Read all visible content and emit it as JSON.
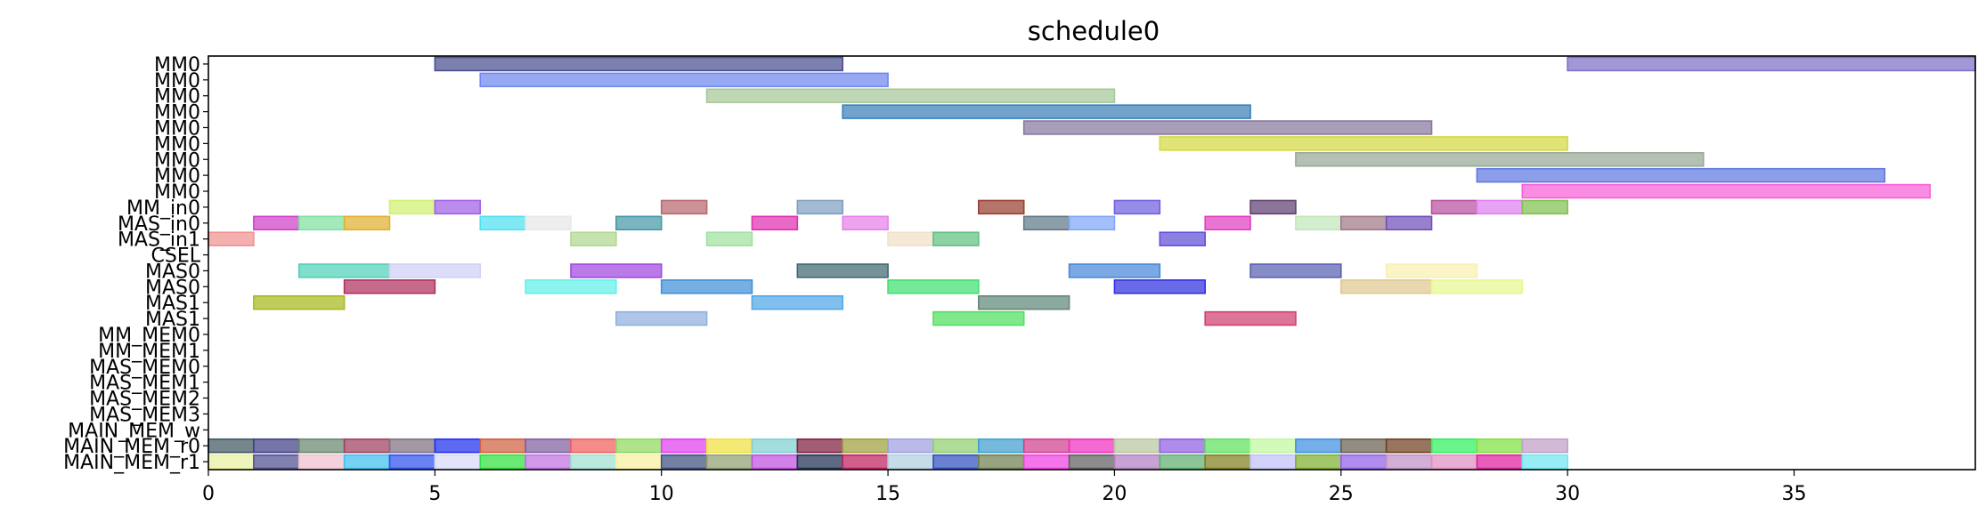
{
  "chart_data": {
    "type": "gantt",
    "title": "schedule0",
    "xlim": [
      0,
      39
    ],
    "x_ticks": [
      0,
      5,
      10,
      15,
      20,
      25,
      30,
      35
    ],
    "lanes": [
      "MM0",
      "MM0",
      "MM0",
      "MM0",
      "MM0",
      "MM0",
      "MM0",
      "MM0",
      "MM0",
      "MM_in0",
      "MAS_in0",
      "MAS_in1",
      "CSEL",
      "MAS0",
      "MAS0",
      "MAS1",
      "MAS1",
      "MM_MEM0",
      "MM_MEM1",
      "MAS_MEM0",
      "MAS_MEM1",
      "MAS_MEM2",
      "MAS_MEM3",
      "MAIN_MEM_w",
      "MAIN_MEM_r0",
      "MAIN_MEM_r1"
    ],
    "tasks": [
      {
        "lane": 0,
        "start": 5,
        "end": 14,
        "color": "#4a4f8f"
      },
      {
        "lane": 0,
        "start": 30,
        "end": 39,
        "color": "#7f70c8"
      },
      {
        "lane": 1,
        "start": 6,
        "end": 15,
        "color": "#7088f0"
      },
      {
        "lane": 2,
        "start": 11,
        "end": 20,
        "color": "#a8c89a"
      },
      {
        "lane": 3,
        "start": 14,
        "end": 23,
        "color": "#3a80b8"
      },
      {
        "lane": 4,
        "start": 18,
        "end": 27,
        "color": "#8878a0"
      },
      {
        "lane": 5,
        "start": 21,
        "end": 30,
        "color": "#d4d840"
      },
      {
        "lane": 6,
        "start": 24,
        "end": 33,
        "color": "#98a898"
      },
      {
        "lane": 7,
        "start": 28,
        "end": 37,
        "color": "#6078e0"
      },
      {
        "lane": 8,
        "start": 29,
        "end": 38,
        "color": "#f860d8"
      },
      {
        "lane": 9,
        "start": 4,
        "end": 5,
        "color": "#d0f070"
      },
      {
        "lane": 9,
        "start": 5,
        "end": 6,
        "color": "#a060e8"
      },
      {
        "lane": 9,
        "start": 10,
        "end": 11,
        "color": "#b86870"
      },
      {
        "lane": 9,
        "start": 13,
        "end": 14,
        "color": "#80a0c0"
      },
      {
        "lane": 9,
        "start": 17,
        "end": 18,
        "color": "#984030"
      },
      {
        "lane": 9,
        "start": 20,
        "end": 21,
        "color": "#7060e0"
      },
      {
        "lane": 9,
        "start": 23,
        "end": 24,
        "color": "#604070"
      },
      {
        "lane": 9,
        "start": 27,
        "end": 28,
        "color": "#b850a0"
      },
      {
        "lane": 9,
        "start": 28,
        "end": 29,
        "color": "#e080f0"
      },
      {
        "lane": 9,
        "start": 29,
        "end": 30,
        "color": "#80c050"
      },
      {
        "lane": 10,
        "start": 1,
        "end": 2,
        "color": "#d040c8"
      },
      {
        "lane": 10,
        "start": 2,
        "end": 3,
        "color": "#80e0a0"
      },
      {
        "lane": 10,
        "start": 3,
        "end": 4,
        "color": "#e0b030"
      },
      {
        "lane": 10,
        "start": 6,
        "end": 7,
        "color": "#50e0f0"
      },
      {
        "lane": 10,
        "start": 7,
        "end": 8,
        "color": "#e8e8e8"
      },
      {
        "lane": 10,
        "start": 9,
        "end": 10,
        "color": "#4898a8"
      },
      {
        "lane": 10,
        "start": 12,
        "end": 13,
        "color": "#e030b0"
      },
      {
        "lane": 10,
        "start": 14,
        "end": 15,
        "color": "#e880e8"
      },
      {
        "lane": 10,
        "start": 18,
        "end": 19,
        "color": "#607888"
      },
      {
        "lane": 10,
        "start": 19,
        "end": 20,
        "color": "#80a8f8"
      },
      {
        "lane": 10,
        "start": 22,
        "end": 23,
        "color": "#e040c0"
      },
      {
        "lane": 10,
        "start": 24,
        "end": 25,
        "color": "#c0e8b8"
      },
      {
        "lane": 10,
        "start": 25,
        "end": 26,
        "color": "#a07888"
      },
      {
        "lane": 10,
        "start": 26,
        "end": 27,
        "color": "#7050b8"
      },
      {
        "lane": 11,
        "start": 0,
        "end": 1,
        "color": "#f09090"
      },
      {
        "lane": 11,
        "start": 8,
        "end": 9,
        "color": "#b0d890"
      },
      {
        "lane": 11,
        "start": 11,
        "end": 12,
        "color": "#a0e0a0"
      },
      {
        "lane": 11,
        "start": 15,
        "end": 16,
        "color": "#f0e0c8"
      },
      {
        "lane": 11,
        "start": 16,
        "end": 17,
        "color": "#60c080"
      },
      {
        "lane": 11,
        "start": 21,
        "end": 22,
        "color": "#6050d8"
      },
      {
        "lane": 13,
        "start": 2,
        "end": 4,
        "color": "#50d0b8"
      },
      {
        "lane": 13,
        "start": 4,
        "end": 6,
        "color": "#d0d0f8"
      },
      {
        "lane": 13,
        "start": 8,
        "end": 10,
        "color": "#a048e0"
      },
      {
        "lane": 13,
        "start": 13,
        "end": 15,
        "color": "#406870"
      },
      {
        "lane": 13,
        "start": 19,
        "end": 21,
        "color": "#4888d8"
      },
      {
        "lane": 13,
        "start": 23,
        "end": 25,
        "color": "#5860b0"
      },
      {
        "lane": 13,
        "start": 26,
        "end": 28,
        "color": "#f8f0b0"
      },
      {
        "lane": 14,
        "start": 3,
        "end": 5,
        "color": "#b03060"
      },
      {
        "lane": 14,
        "start": 7,
        "end": 9,
        "color": "#60f0e8"
      },
      {
        "lane": 14,
        "start": 10,
        "end": 12,
        "color": "#4090d8"
      },
      {
        "lane": 14,
        "start": 15,
        "end": 17,
        "color": "#40e070"
      },
      {
        "lane": 14,
        "start": 20,
        "end": 22,
        "color": "#3030e0"
      },
      {
        "lane": 14,
        "start": 25,
        "end": 27,
        "color": "#e0c890"
      },
      {
        "lane": 14,
        "start": 27,
        "end": 29,
        "color": "#e8f890"
      },
      {
        "lane": 15,
        "start": 1,
        "end": 3,
        "color": "#a8b820"
      },
      {
        "lane": 15,
        "start": 12,
        "end": 14,
        "color": "#50a8e8"
      },
      {
        "lane": 15,
        "start": 17,
        "end": 19,
        "color": "#608878"
      },
      {
        "lane": 16,
        "start": 9,
        "end": 11,
        "color": "#90b0e0"
      },
      {
        "lane": 16,
        "start": 16,
        "end": 18,
        "color": "#50e060"
      },
      {
        "lane": 16,
        "start": 22,
        "end": 24,
        "color": "#d04070"
      },
      {
        "lane": 24,
        "start": 0,
        "end": 1,
        "color": "#405860"
      },
      {
        "lane": 24,
        "start": 1,
        "end": 2,
        "color": "#404088"
      },
      {
        "lane": 24,
        "start": 2,
        "end": 3,
        "color": "#688870"
      },
      {
        "lane": 24,
        "start": 3,
        "end": 4,
        "color": "#a04060"
      },
      {
        "lane": 24,
        "start": 4,
        "end": 5,
        "color": "#807080"
      },
      {
        "lane": 24,
        "start": 5,
        "end": 6,
        "color": "#2030f0"
      },
      {
        "lane": 24,
        "start": 6,
        "end": 7,
        "color": "#d06040"
      },
      {
        "lane": 24,
        "start": 7,
        "end": 8,
        "color": "#8060a0"
      },
      {
        "lane": 24,
        "start": 8,
        "end": 9,
        "color": "#f06060"
      },
      {
        "lane": 24,
        "start": 9,
        "end": 10,
        "color": "#90d860"
      },
      {
        "lane": 24,
        "start": 10,
        "end": 11,
        "color": "#e040f0"
      },
      {
        "lane": 24,
        "start": 11,
        "end": 12,
        "color": "#f0e040"
      },
      {
        "lane": 24,
        "start": 12,
        "end": 13,
        "color": "#80d0d0"
      },
      {
        "lane": 24,
        "start": 13,
        "end": 14,
        "color": "#802040"
      },
      {
        "lane": 24,
        "start": 14,
        "end": 15,
        "color": "#a0a040"
      },
      {
        "lane": 24,
        "start": 15,
        "end": 16,
        "color": "#a0a0e0"
      },
      {
        "lane": 24,
        "start": 16,
        "end": 17,
        "color": "#90d070"
      },
      {
        "lane": 24,
        "start": 17,
        "end": 18,
        "color": "#40a0d0"
      },
      {
        "lane": 24,
        "start": 18,
        "end": 19,
        "color": "#d04090"
      },
      {
        "lane": 24,
        "start": 19,
        "end": 20,
        "color": "#f030c0"
      },
      {
        "lane": 24,
        "start": 20,
        "end": 21,
        "color": "#b8c8a0"
      },
      {
        "lane": 24,
        "start": 21,
        "end": 22,
        "color": "#9060e0"
      },
      {
        "lane": 24,
        "start": 22,
        "end": 23,
        "color": "#60e060"
      },
      {
        "lane": 24,
        "start": 23,
        "end": 24,
        "color": "#c0f8a0"
      },
      {
        "lane": 24,
        "start": 24,
        "end": 25,
        "color": "#4090e0"
      },
      {
        "lane": 24,
        "start": 25,
        "end": 26,
        "color": "#686050"
      },
      {
        "lane": 24,
        "start": 26,
        "end": 27,
        "color": "#704020"
      },
      {
        "lane": 24,
        "start": 27,
        "end": 28,
        "color": "#30f060"
      },
      {
        "lane": 24,
        "start": 28,
        "end": 29,
        "color": "#80e040"
      },
      {
        "lane": 24,
        "start": 29,
        "end": 30,
        "color": "#c0a0c8"
      },
      {
        "lane": 25,
        "start": 0,
        "end": 1,
        "color": "#e8f0a0"
      },
      {
        "lane": 25,
        "start": 1,
        "end": 2,
        "color": "#505090"
      },
      {
        "lane": 25,
        "start": 2,
        "end": 3,
        "color": "#f0c0d0"
      },
      {
        "lane": 25,
        "start": 3,
        "end": 4,
        "color": "#40c0f0"
      },
      {
        "lane": 25,
        "start": 4,
        "end": 5,
        "color": "#3050f0"
      },
      {
        "lane": 25,
        "start": 5,
        "end": 6,
        "color": "#d8d8f8"
      },
      {
        "lane": 25,
        "start": 6,
        "end": 7,
        "color": "#30e040"
      },
      {
        "lane": 25,
        "start": 7,
        "end": 8,
        "color": "#c070e0"
      },
      {
        "lane": 25,
        "start": 8,
        "end": 9,
        "color": "#a0e0d0"
      },
      {
        "lane": 25,
        "start": 9,
        "end": 10,
        "color": "#f8f0a0"
      },
      {
        "lane": 25,
        "start": 10,
        "end": 11,
        "color": "#405080"
      },
      {
        "lane": 25,
        "start": 11,
        "end": 12,
        "color": "#90a070"
      },
      {
        "lane": 25,
        "start": 12,
        "end": 13,
        "color": "#c050e0"
      },
      {
        "lane": 25,
        "start": 13,
        "end": 14,
        "color": "#203050"
      },
      {
        "lane": 25,
        "start": 14,
        "end": 15,
        "color": "#c02060"
      },
      {
        "lane": 25,
        "start": 15,
        "end": 16,
        "color": "#b0d0e0"
      },
      {
        "lane": 25,
        "start": 16,
        "end": 17,
        "color": "#3050c0"
      },
      {
        "lane": 25,
        "start": 17,
        "end": 18,
        "color": "#708050"
      },
      {
        "lane": 25,
        "start": 18,
        "end": 19,
        "color": "#f040e0"
      },
      {
        "lane": 25,
        "start": 19,
        "end": 20,
        "color": "#606060"
      },
      {
        "lane": 25,
        "start": 20,
        "end": 21,
        "color": "#b080c0"
      },
      {
        "lane": 25,
        "start": 21,
        "end": 22,
        "color": "#60b070"
      },
      {
        "lane": 25,
        "start": 22,
        "end": 23,
        "color": "#808020"
      },
      {
        "lane": 25,
        "start": 23,
        "end": 24,
        "color": "#c0c0f8"
      },
      {
        "lane": 25,
        "start": 24,
        "end": 25,
        "color": "#80b030"
      },
      {
        "lane": 25,
        "start": 25,
        "end": 26,
        "color": "#9060e8"
      },
      {
        "lane": 25,
        "start": 26,
        "end": 27,
        "color": "#c090c8"
      },
      {
        "lane": 25,
        "start": 27,
        "end": 28,
        "color": "#e090c0"
      },
      {
        "lane": 25,
        "start": 28,
        "end": 29,
        "color": "#e020a0"
      },
      {
        "lane": 25,
        "start": 29,
        "end": 30,
        "color": "#70e8f0"
      }
    ]
  }
}
